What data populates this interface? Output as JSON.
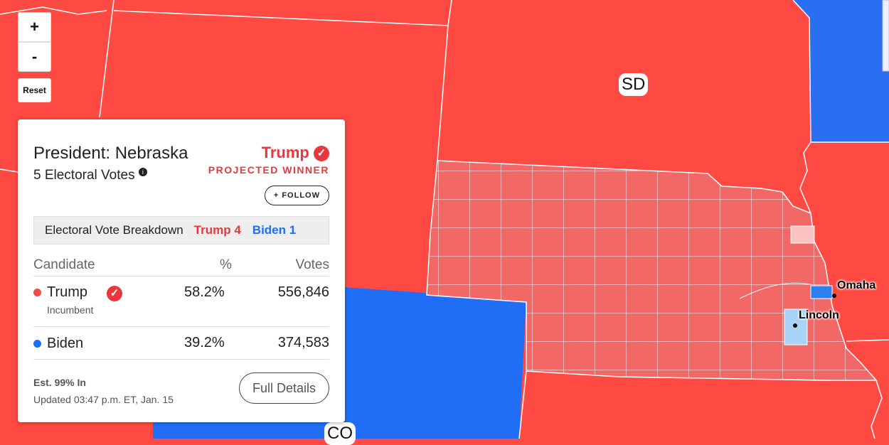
{
  "map_controls": {
    "zoom_in": "+",
    "zoom_out": "-",
    "reset": "Reset"
  },
  "map_labels": {
    "states": [
      "SD",
      "CO"
    ],
    "cities": [
      "Omaha",
      "Lincoln"
    ]
  },
  "panel": {
    "title": "President: Nebraska",
    "subtitle": "5 Electoral Votes",
    "winner": {
      "name": "Trump",
      "status": "PROJECTED WINNER"
    },
    "follow": "+ FOLLOW",
    "breakdown": {
      "label": "Electoral Vote Breakdown",
      "items": [
        "Trump 4",
        "Biden 1"
      ]
    },
    "table": {
      "headers": [
        "Candidate",
        "%",
        "Votes"
      ],
      "rows": [
        {
          "name": "Trump",
          "note": "Incumbent",
          "percent": "58.2%",
          "votes": "556,846"
        },
        {
          "name": "Biden",
          "percent": "39.2%",
          "votes": "374,583"
        }
      ]
    },
    "footer": {
      "reporting": "Est. 99% In",
      "updated": "Updated 03:47 p.m. ET, Jan. 15"
    },
    "details_button": "Full Details"
  }
}
